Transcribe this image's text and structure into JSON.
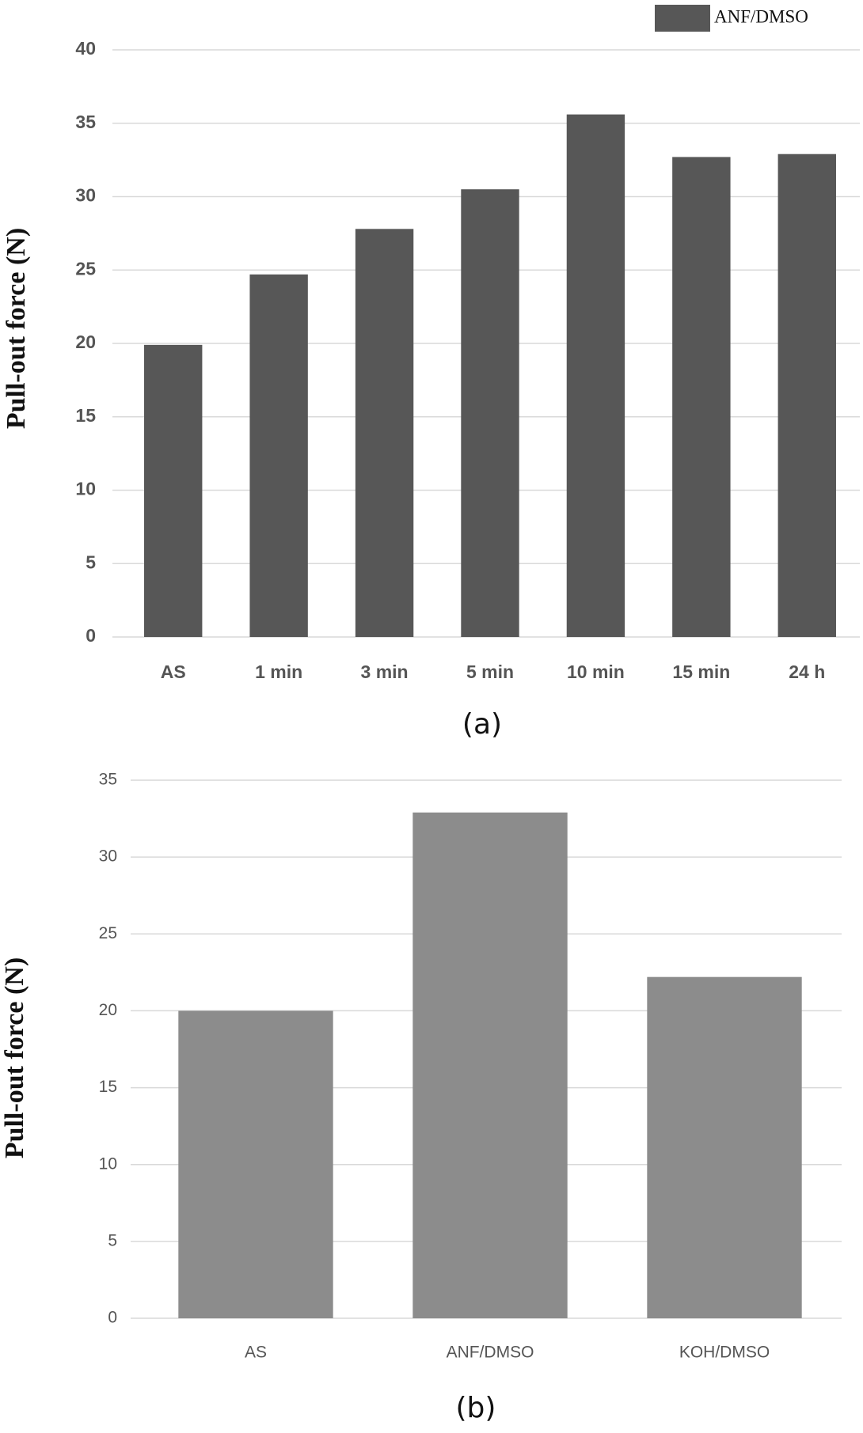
{
  "chart_data": [
    {
      "type": "bar",
      "y_label": "Pull-out force (N)",
      "caption": "(a)",
      "categories": [
        "AS",
        "1 min",
        "3 min",
        "5 min",
        "10 min",
        "15 min",
        "24 h"
      ],
      "series": [
        {
          "name": "ANF/DMSO",
          "color": "#575757",
          "values": [
            19.9,
            24.7,
            27.8,
            30.5,
            35.6,
            32.7,
            32.9
          ]
        }
      ],
      "ylim": [
        0,
        40
      ],
      "yticks": [
        0,
        5,
        10,
        15,
        20,
        25,
        30,
        35,
        40
      ],
      "grid": true,
      "legend": "top-right"
    },
    {
      "type": "bar",
      "y_label": "Pull-out force (N)",
      "caption": "(b)",
      "categories": [
        "AS",
        "ANF/DMSO",
        "KOH/DMSO"
      ],
      "values": [
        20,
        32.9,
        22.2
      ],
      "color": "#8c8c8c",
      "ylim": [
        0,
        35
      ],
      "yticks": [
        0,
        5,
        10,
        15,
        20,
        25,
        30,
        35
      ],
      "grid": true
    }
  ]
}
